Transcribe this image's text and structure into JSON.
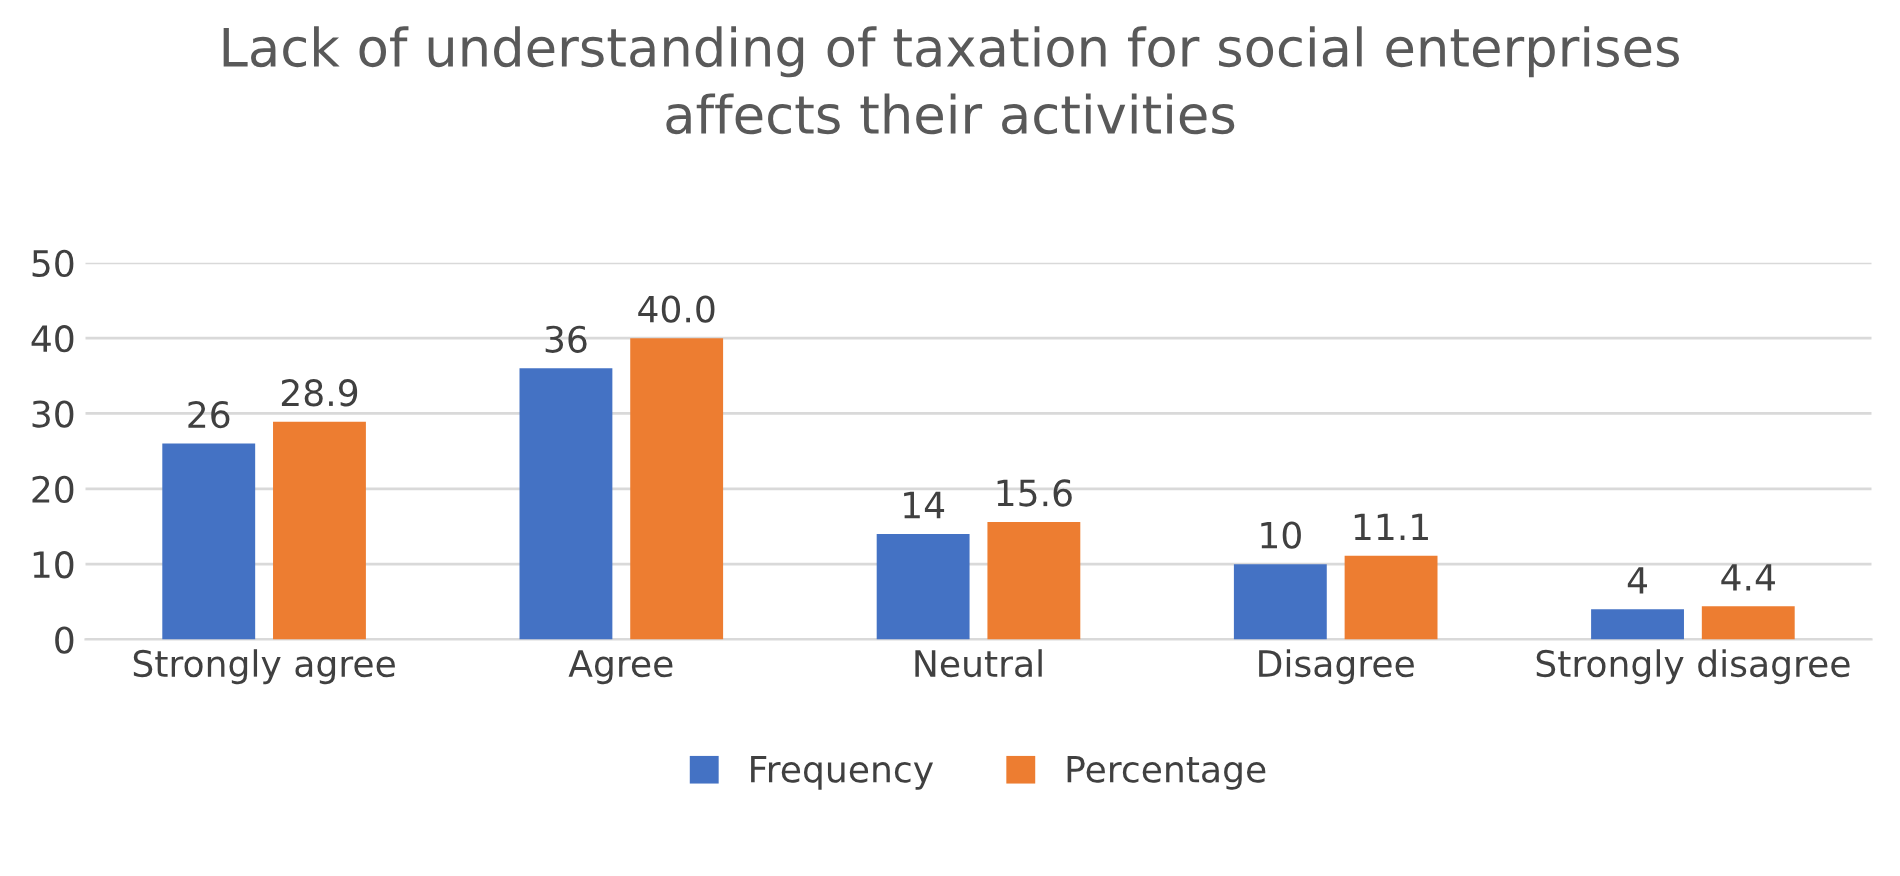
{
  "chart_data": {
    "type": "bar",
    "title": "Lack of understanding of taxation for social enterprises\naffects their activities",
    "categories": [
      "Strongly agree",
      "Agree",
      "Neutral",
      "Disagree",
      "Strongly disagree"
    ],
    "series": [
      {
        "name": "Frequency",
        "color": "#4472c4",
        "values": [
          26,
          36,
          14,
          10,
          4
        ],
        "value_labels": [
          "26",
          "36",
          "14",
          "10",
          "4"
        ]
      },
      {
        "name": "Percentage",
        "color": "#ed7d31",
        "values": [
          28.9,
          40.0,
          15.6,
          11.1,
          4.4
        ],
        "value_labels": [
          "28.9",
          "40.0",
          "15.6",
          "11.1",
          "4.4"
        ]
      }
    ],
    "ylim": [
      0,
      50
    ],
    "yticks": [
      0,
      10,
      20,
      30,
      40,
      50
    ],
    "grid": "y",
    "legend": "bottom"
  }
}
